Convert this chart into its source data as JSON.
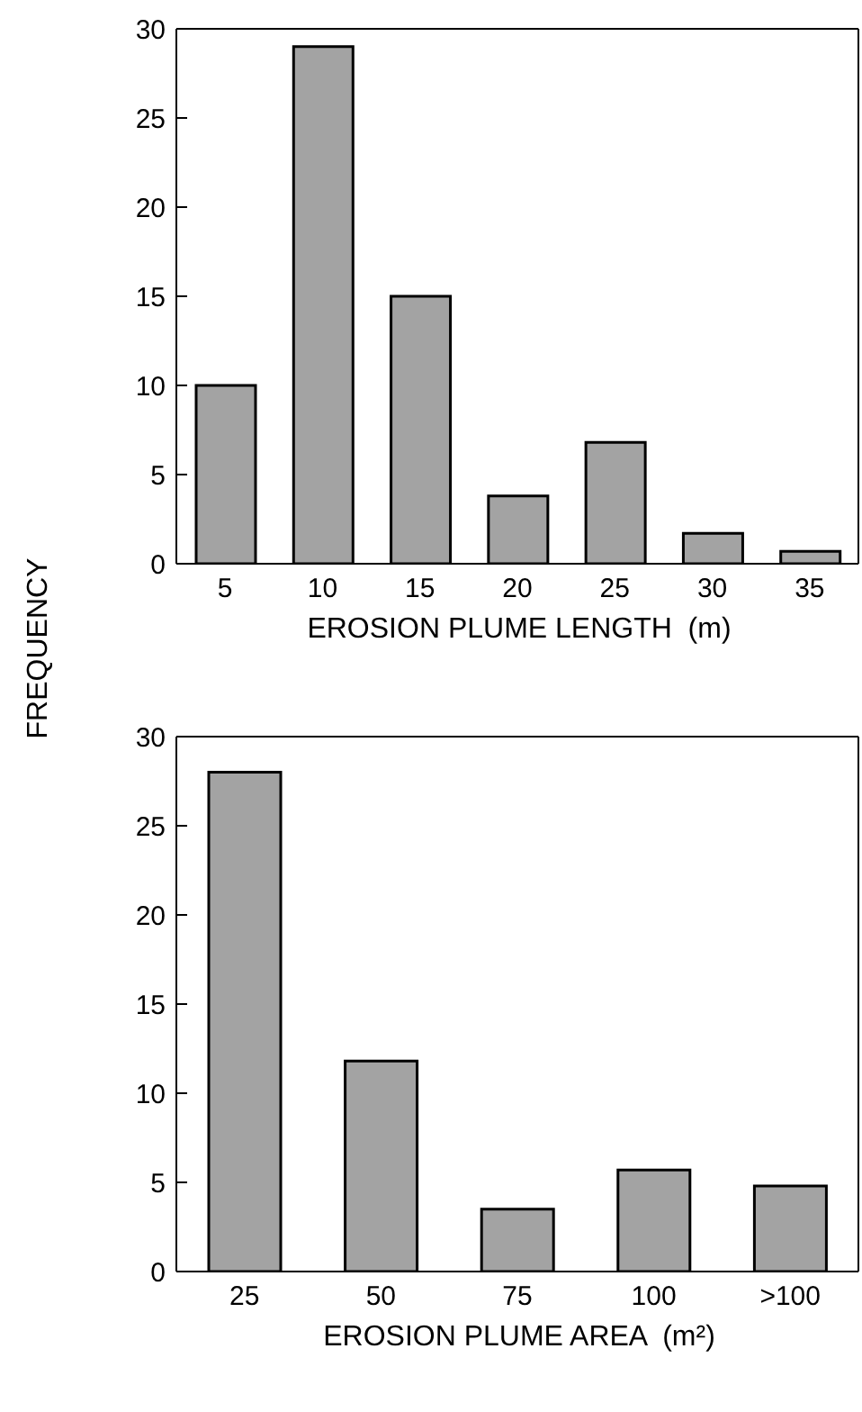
{
  "chart_data": [
    {
      "type": "bar",
      "categories": [
        "5",
        "10",
        "15",
        "20",
        "25",
        "30",
        "35"
      ],
      "values": [
        10,
        29,
        15,
        3.8,
        6.8,
        1.7,
        0.7
      ],
      "color": "#a3a3a3",
      "xlabel": "EROSION PLUME LENGTH  (m)",
      "ylabel": "FREQUENCY",
      "ylim": [
        0,
        30
      ],
      "yticks": [
        0,
        5,
        10,
        15,
        20,
        25,
        30
      ],
      "grid": false,
      "legend": false
    },
    {
      "type": "bar",
      "categories": [
        "25",
        "50",
        "75",
        "100",
        ">100"
      ],
      "values": [
        28,
        11.8,
        3.5,
        5.7,
        4.8
      ],
      "color": "#a3a3a3",
      "xlabel": "EROSION PLUME AREA  (m²)",
      "ylim": [
        0,
        30
      ],
      "yticks": [
        0,
        5,
        10,
        15,
        20,
        25,
        30
      ],
      "grid": false,
      "legend": false
    }
  ]
}
